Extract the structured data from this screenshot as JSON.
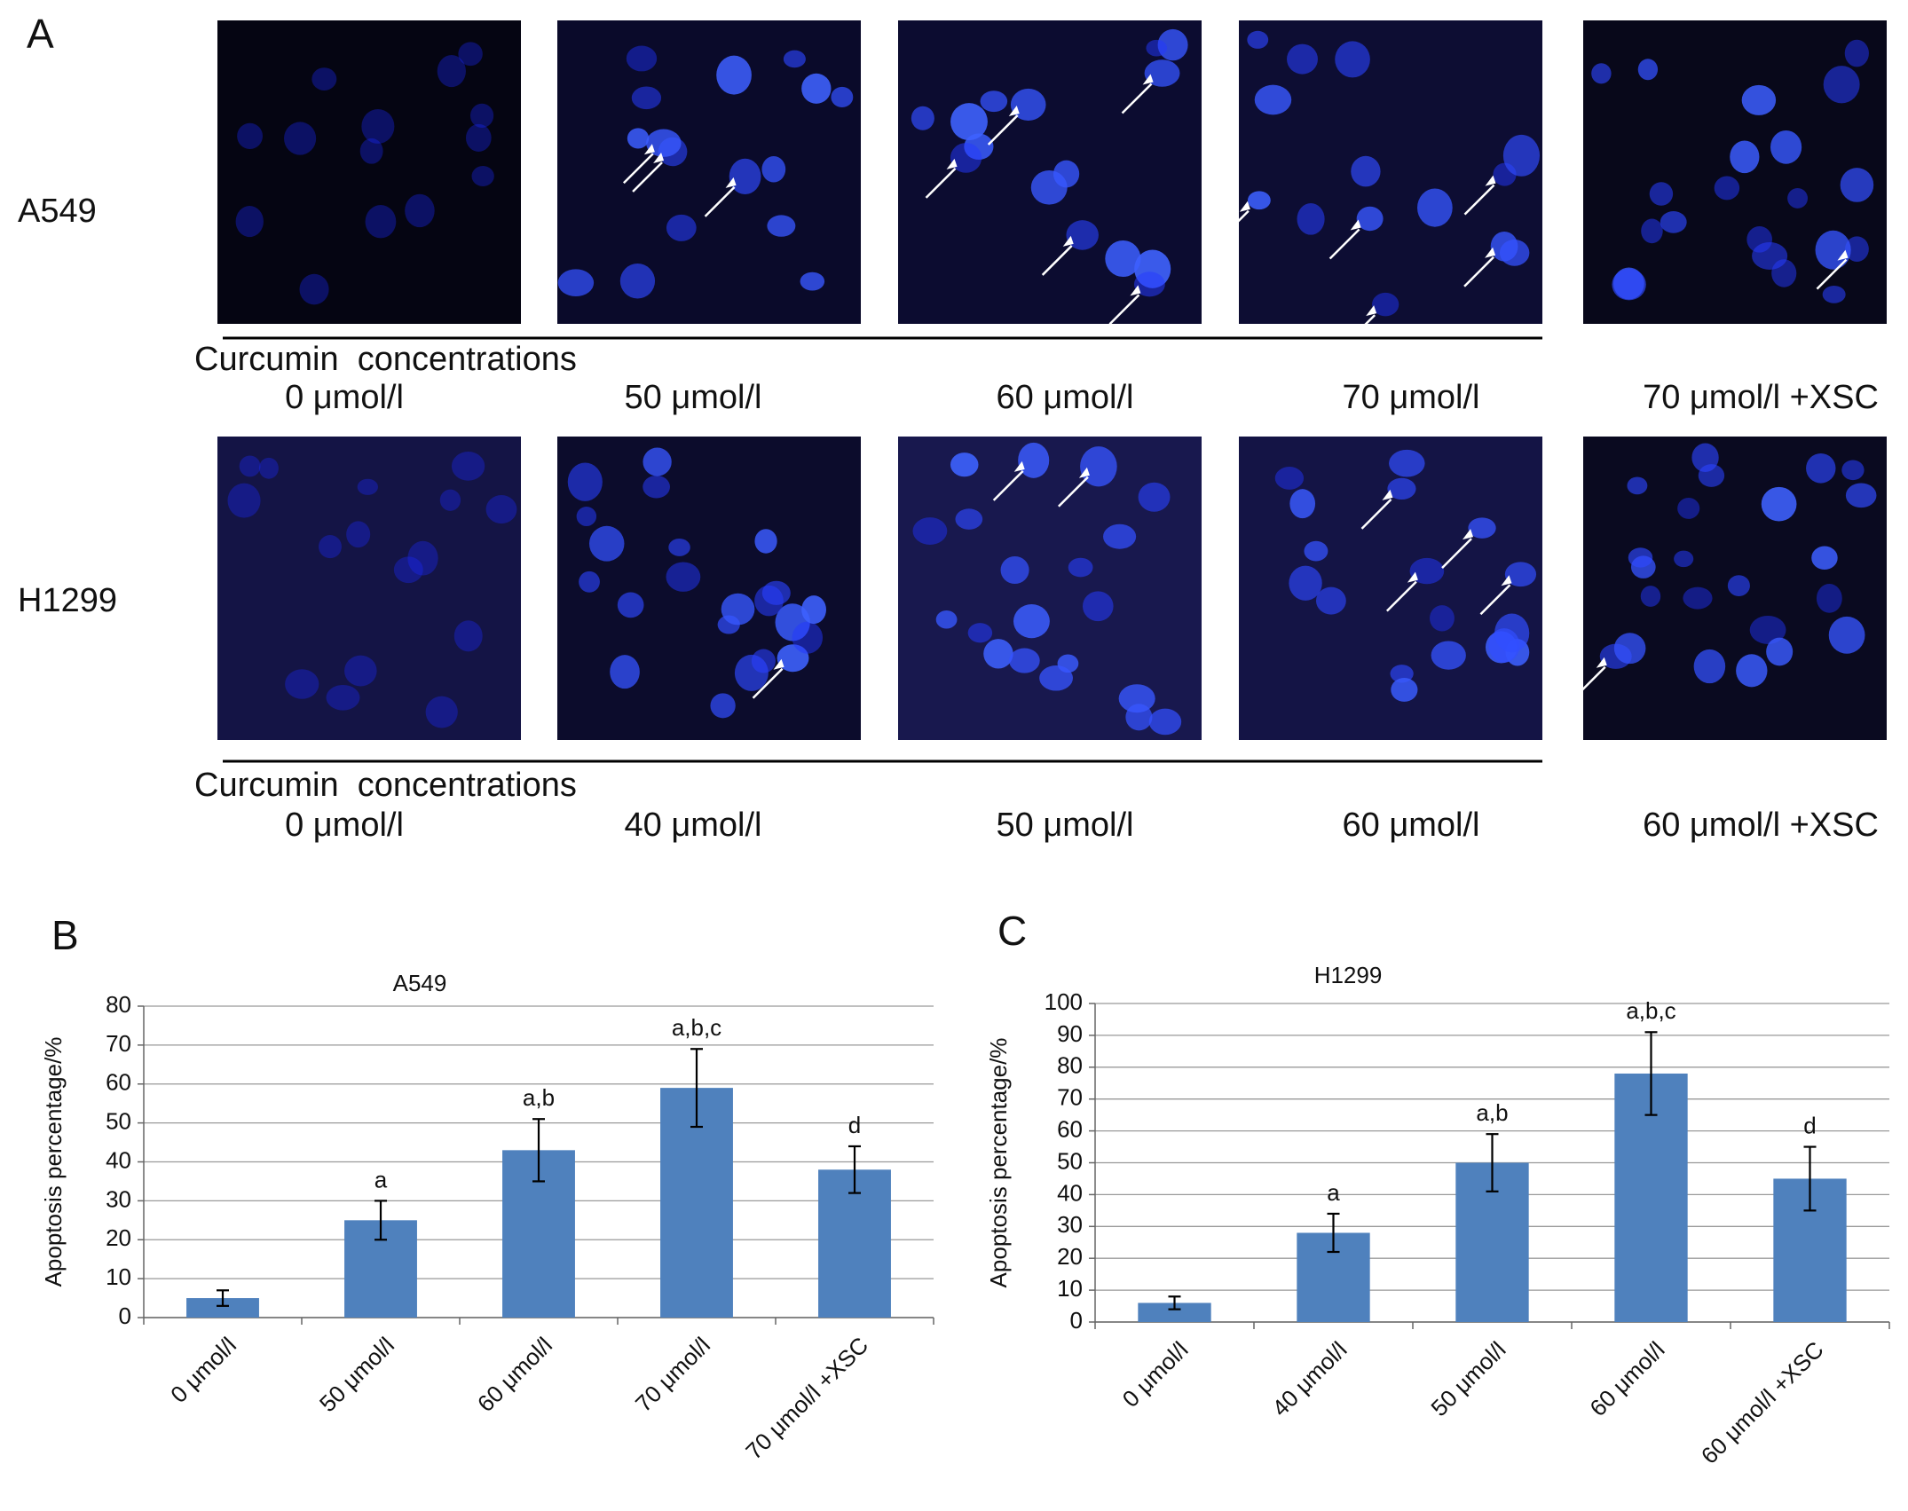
{
  "panel_a": {
    "label": "A",
    "rows": [
      {
        "cell_line": "A549",
        "caption": "Curcumin  concentrations",
        "concentrations": [
          "0 μmol/l",
          "50 μmol/l",
          "60 μmol/l",
          "70 μmol/l",
          "70 μmol/l +XSC"
        ]
      },
      {
        "cell_line": "H1299",
        "caption": "Curcumin  concentrations",
        "concentrations": [
          "0 μmol/l",
          "40 μmol/l",
          "50 μmol/l",
          "60 μmol/l",
          "60 μmol/l +XSC"
        ]
      }
    ]
  },
  "chart_data": [
    {
      "type": "bar",
      "panel_label": "B",
      "title": "A549",
      "y_label": "Apoptosis percentage/%",
      "categories": [
        "0 μmol/l",
        "50 μmol/l",
        "60 μmol/l",
        "70 μmol/l",
        "70 μmol/l +XSC"
      ],
      "values": [
        5,
        25,
        43,
        59,
        38
      ],
      "errors": [
        2,
        5,
        8,
        10,
        6
      ],
      "annotations": [
        null,
        "a",
        "a,b",
        "a,b,c",
        "d"
      ],
      "color": "#4f81bd",
      "ylim": [
        0,
        80
      ],
      "yticks": [
        0,
        10,
        20,
        30,
        40,
        50,
        60,
        70,
        80
      ],
      "grid": true
    },
    {
      "type": "bar",
      "panel_label": "C",
      "title": "H1299",
      "y_label": "Apoptosis percentage/%",
      "categories": [
        "0 μmol/l",
        "40 μmol/l",
        "50 μmol/l",
        "60 μmol/l",
        "60 μmol/l +XSC"
      ],
      "values": [
        6,
        28,
        50,
        78,
        45
      ],
      "errors": [
        2,
        6,
        9,
        13,
        10
      ],
      "annotations": [
        null,
        "a",
        "a,b",
        "a,b,c",
        "d"
      ],
      "color": "#4f81bd",
      "ylim": [
        0,
        100
      ],
      "yticks": [
        0,
        10,
        20,
        30,
        40,
        50,
        60,
        70,
        80,
        90,
        100
      ],
      "grid": true
    }
  ]
}
